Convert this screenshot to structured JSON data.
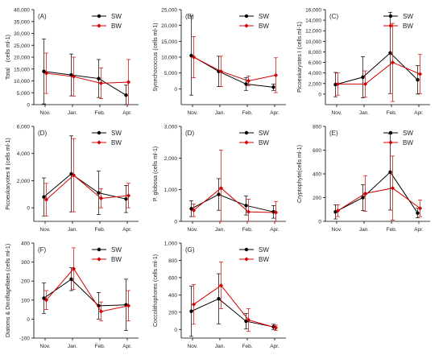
{
  "colors": {
    "SW": "#000000",
    "BW": "#d40000",
    "axis": "#000000"
  },
  "chart_data": [
    {
      "type": "line",
      "panel_label": "(A)",
      "ylabel": "Total　(cells ml-1)",
      "categories": [
        "Nov.",
        "Jan.",
        "Feb.",
        "Apr."
      ],
      "ylim": [
        0,
        40000
      ],
      "yticks": [
        0,
        5000,
        10000,
        15000,
        20000,
        25000,
        30000,
        35000,
        40000
      ],
      "ytick_labels": [
        "0",
        "5,000",
        "10,000",
        "15,000",
        "20,000",
        "25,000",
        "30,000",
        "35,000",
        "40,000"
      ],
      "legend": "top-right",
      "series": [
        {
          "name": "SW",
          "values": [
            14000,
            12500,
            11000,
            4000
          ],
          "err": [
            13700,
            8800,
            8000,
            4200
          ]
        },
        {
          "name": "BW",
          "values": [
            13200,
            11800,
            9000,
            9500
          ],
          "err": [
            8500,
            8200,
            6500,
            9500
          ]
        }
      ]
    },
    {
      "type": "line",
      "panel_label": "(B)",
      "ylabel": "Synechococcus (cells ml-1)",
      "categories": [
        "Nov.",
        "Jan.",
        "Feb.",
        "Apr."
      ],
      "ylim": [
        -5000,
        25000
      ],
      "yticks": [
        0,
        5000,
        10000,
        15000,
        20000,
        25000
      ],
      "ytick_labels": [
        "0",
        "5,000",
        "10,000",
        "15,000",
        "20,000",
        "25,000"
      ],
      "legend": "top-right",
      "series": [
        {
          "name": "SW",
          "values": [
            10500,
            5500,
            1500,
            500
          ],
          "err": [
            12500,
            4800,
            2000,
            1000
          ]
        },
        {
          "name": "BW",
          "values": [
            10000,
            5500,
            2500,
            4300
          ],
          "err": [
            6500,
            4800,
            1500,
            5500
          ]
        }
      ]
    },
    {
      "type": "line",
      "panel_label": "(C)",
      "ylabel": "Picoeukaryotes Ⅰ (cells ml-1)",
      "categories": [
        "Nov.",
        "Jan.",
        "Feb.",
        "Apr."
      ],
      "ylim": [
        -2000,
        16000
      ],
      "yticks": [
        0,
        2000,
        4000,
        6000,
        8000,
        10000,
        12000,
        14000,
        16000
      ],
      "ytick_labels": [
        "0",
        "2,000",
        "4,000",
        "6,000",
        "8,000",
        "10,000",
        "12,000",
        "14,000",
        "16,000"
      ],
      "legend": "top-right",
      "series": [
        {
          "name": "SW",
          "values": [
            1800,
            3200,
            7800,
            2700
          ],
          "err": [
            2300,
            3900,
            7700,
            2700
          ]
        },
        {
          "name": "BW",
          "values": [
            1900,
            1900,
            6000,
            3800
          ],
          "err": [
            2100,
            2500,
            7400,
            3700
          ]
        }
      ]
    },
    {
      "type": "line",
      "panel_label": "(D)",
      "ylabel": "Picoeukaryotes Ⅱ (cells ml-1)",
      "categories": [
        "Nov.",
        "Jan.",
        "Feb.",
        "Apr."
      ],
      "ylim": [
        -1000,
        6000
      ],
      "yticks": [
        0,
        2000,
        4000,
        6000
      ],
      "ytick_labels": [
        "0",
        "2,000",
        "4,000",
        "6,000"
      ],
      "legend": "top-right",
      "series": [
        {
          "name": "SW",
          "values": [
            800,
            2500,
            1100,
            650
          ],
          "err": [
            1400,
            2800,
            1600,
            1000
          ]
        },
        {
          "name": "BW",
          "values": [
            600,
            2400,
            700,
            900
          ],
          "err": [
            1200,
            2700,
            700,
            900
          ]
        }
      ]
    },
    {
      "type": "line",
      "panel_label": "(D)",
      "ylabel": "P. globosa (cells ml-1)",
      "categories": [
        "Nov.",
        "Jan.",
        "Feb.",
        "Apr."
      ],
      "ylim": [
        0,
        3000
      ],
      "yticks": [
        0,
        1000,
        2000,
        3000
      ],
      "ytick_labels": [
        "0",
        "1,000",
        "2,000",
        "3,000"
      ],
      "legend": "top-right",
      "series": [
        {
          "name": "SW",
          "values": [
            400,
            850,
            500,
            300
          ],
          "err": [
            250,
            500,
            300,
            200
          ]
        },
        {
          "name": "BW",
          "values": [
            350,
            1050,
            300,
            280
          ],
          "err": [
            200,
            1200,
            400,
            350
          ]
        }
      ]
    },
    {
      "type": "line",
      "panel_label": "(E)",
      "ylabel": "Cryptophyte(cells ml-1)",
      "categories": [
        "Nov.",
        "Jan.",
        "Feb.",
        "Apr."
      ],
      "ylim": [
        0,
        800
      ],
      "yticks": [
        0,
        200,
        400,
        600,
        800
      ],
      "ytick_labels": [
        "0",
        "200",
        "400",
        "600",
        "800"
      ],
      "legend": "top-right",
      "series": [
        {
          "name": "SW",
          "values": [
            80,
            200,
            415,
            70
          ],
          "err": [
            60,
            110,
            320,
            40
          ]
        },
        {
          "name": "BW",
          "values": [
            90,
            235,
            280,
            110
          ],
          "err": [
            50,
            150,
            270,
            70
          ]
        }
      ]
    },
    {
      "type": "line",
      "panel_label": "(F)",
      "ylabel": "Diatoms & Dinoflagellates (cells ml-1)",
      "categories": [
        "Nov.",
        "Jan.",
        "Feb.",
        "Apr."
      ],
      "ylim": [
        -100,
        400
      ],
      "yticks": [
        -100,
        0,
        100,
        200,
        300,
        400
      ],
      "ytick_labels": [
        "-100",
        "0",
        "100",
        "200",
        "300",
        "400"
      ],
      "legend": "top-right",
      "series": [
        {
          "name": "SW",
          "values": [
            110,
            210,
            70,
            75
          ],
          "err": [
            80,
            60,
            70,
            135
          ]
        },
        {
          "name": "BW",
          "values": [
            100,
            265,
            40,
            70
          ],
          "err": [
            50,
            110,
            50,
            80
          ]
        }
      ]
    },
    {
      "type": "line",
      "panel_label": "(G)",
      "ylabel": "Coccolithophores (cells ml-1)",
      "categories": [
        "Nov.",
        "Jan.",
        "Feb.",
        "Apr."
      ],
      "ylim": [
        -100,
        1000
      ],
      "yticks": [
        0,
        200,
        400,
        600,
        800,
        1000
      ],
      "ytick_labels": [
        "0",
        "200",
        "400",
        "600",
        "800",
        "1,000"
      ],
      "legend": "top-right",
      "series": [
        {
          "name": "SW",
          "values": [
            210,
            355,
            95,
            30
          ],
          "err": [
            290,
            290,
            90,
            30
          ]
        },
        {
          "name": "BW",
          "values": [
            290,
            510,
            110,
            20
          ],
          "err": [
            230,
            270,
            130,
            30
          ]
        }
      ]
    }
  ]
}
